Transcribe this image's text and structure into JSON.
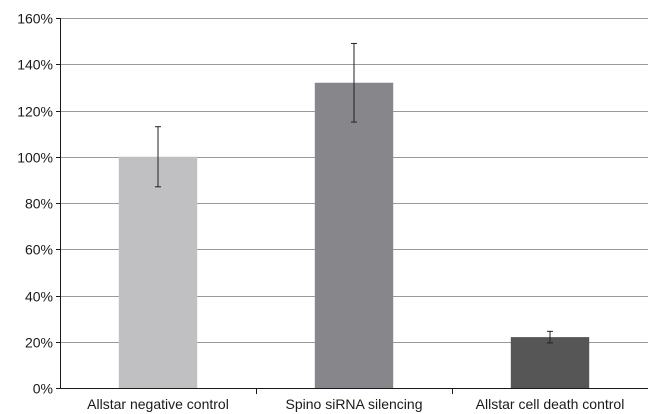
{
  "chart_data": {
    "type": "bar",
    "title": "",
    "xlabel": "",
    "ylabel": "",
    "categories": [
      "Allstar negative control",
      "Spino siRNA silencing",
      "Allstar cell death control"
    ],
    "values": [
      100,
      132,
      22
    ],
    "error": [
      13,
      17,
      2.5
    ],
    "value_unit": "%",
    "ylim": [
      0,
      160
    ],
    "yticks": [
      "0%",
      "20%",
      "40%",
      "60%",
      "80%",
      "100%",
      "120%",
      "140%",
      "160%"
    ],
    "ytick_values": [
      0,
      20,
      40,
      60,
      80,
      100,
      120,
      140,
      160
    ],
    "grid": true,
    "legend": "none",
    "colors": [
      "#c0c0c2",
      "#87878b",
      "#565656"
    ]
  }
}
